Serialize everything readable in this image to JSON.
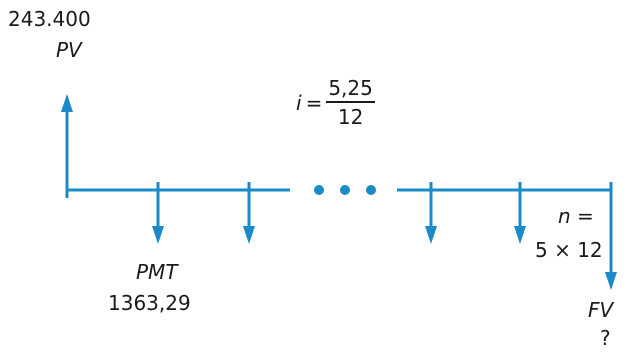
{
  "colors": {
    "flow": "#1a8ac8",
    "text": "#1a1a1a"
  },
  "present_value": {
    "amount": "243.400",
    "symbol": "PV"
  },
  "rate": {
    "symbol": "i",
    "equals": "=",
    "numerator": "5,25",
    "denominator": "12"
  },
  "payment": {
    "symbol": "PMT",
    "amount": "1363,29"
  },
  "periods": {
    "line1": "n =",
    "line2": "5 × 12"
  },
  "future_value": {
    "symbol": "FV",
    "amount": "?"
  }
}
